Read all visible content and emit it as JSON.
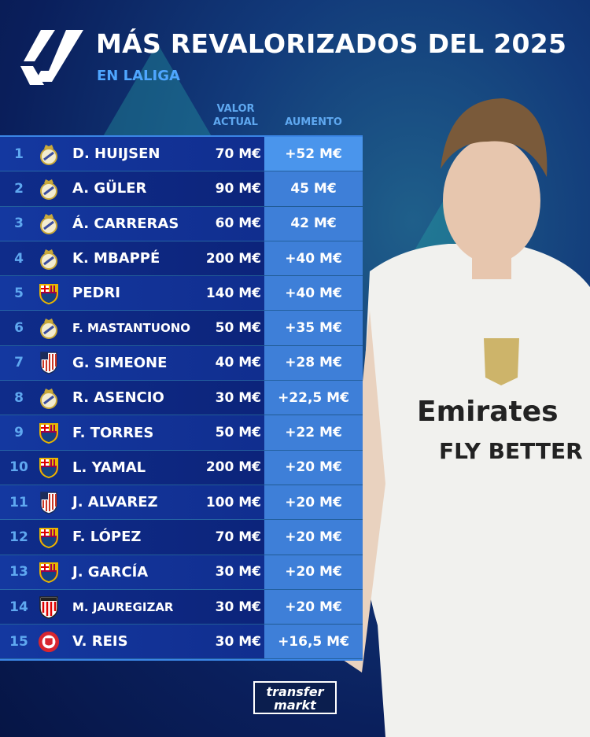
{
  "header": {
    "title": "MÁS REVALORIZADOS DEL 2025",
    "subtitle": "EN LALIGA",
    "logo": "laliga-logo"
  },
  "columns": {
    "value_line1": "VALOR",
    "value_line2": "ACTUAL",
    "increase": "AUMENTO"
  },
  "rows": [
    {
      "rank": "1",
      "club": "real-madrid",
      "name": "D. HUIJSEN",
      "value": "70 M€",
      "increase": "+52 M€"
    },
    {
      "rank": "2",
      "club": "real-madrid",
      "name": "A. GÜLER",
      "value": "90 M€",
      "increase": "45 M€"
    },
    {
      "rank": "3",
      "club": "real-madrid",
      "name": "Á. CARRERAS",
      "value": "60 M€",
      "increase": "42 M€"
    },
    {
      "rank": "4",
      "club": "real-madrid",
      "name": "K. MBAPPÉ",
      "value": "200 M€",
      "increase": "+40 M€"
    },
    {
      "rank": "5",
      "club": "barcelona",
      "name": "PEDRI",
      "value": "140 M€",
      "increase": "+40 M€"
    },
    {
      "rank": "6",
      "club": "real-madrid",
      "name": "F. MASTANTUONO",
      "value": "50 M€",
      "increase": "+35 M€"
    },
    {
      "rank": "7",
      "club": "atletico-madrid",
      "name": "G. SIMEONE",
      "value": "40 M€",
      "increase": "+28 M€"
    },
    {
      "rank": "8",
      "club": "real-madrid",
      "name": "R. ASENCIO",
      "value": "30 M€",
      "increase": "+22,5 M€"
    },
    {
      "rank": "9",
      "club": "barcelona",
      "name": "F. TORRES",
      "value": "50 M€",
      "increase": "+22 M€"
    },
    {
      "rank": "10",
      "club": "barcelona",
      "name": "L. YAMAL",
      "value": "200 M€",
      "increase": "+20 M€"
    },
    {
      "rank": "11",
      "club": "atletico-madrid",
      "name": "J. ALVAREZ",
      "value": "100 M€",
      "increase": "+20 M€"
    },
    {
      "rank": "12",
      "club": "barcelona",
      "name": "F. LÓPEZ",
      "value": "70 M€",
      "increase": "+20 M€"
    },
    {
      "rank": "13",
      "club": "barcelona",
      "name": "J. GARCÍA",
      "value": "30 M€",
      "increase": "+20 M€"
    },
    {
      "rank": "14",
      "club": "athletic-bilbao",
      "name": "M. JAUREGIZAR",
      "value": "30 M€",
      "increase": "+20 M€"
    },
    {
      "rank": "15",
      "club": "girona",
      "name": "V. REIS",
      "value": "30 M€",
      "increase": "+16,5 M€"
    }
  ],
  "player_photo": {
    "jersey_sponsor_line1": "Emirates",
    "jersey_sponsor_line2": "FLY BETTER"
  },
  "footer": {
    "brand_line1": "transfer",
    "brand_line2": "markt"
  },
  "colors": {
    "accent": "#4fa6ff",
    "increase_cell": "#3e7fd8",
    "row": "#1438a0",
    "background": "#0a1f5c"
  }
}
